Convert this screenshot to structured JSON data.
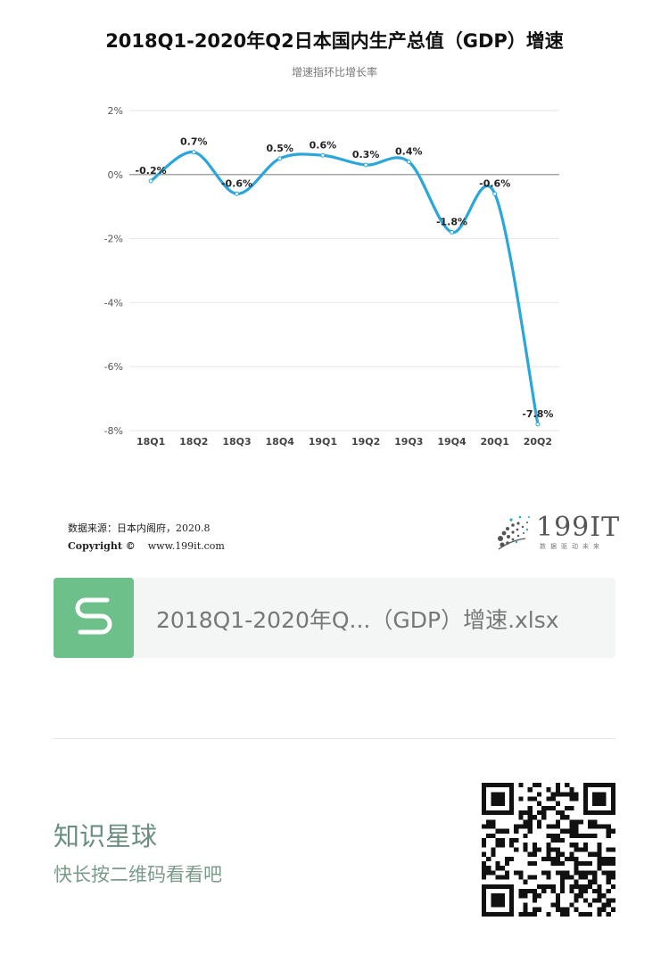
{
  "chart_data": {
    "type": "line",
    "title": "2018Q1-2020年Q2日本国内生产总值（GDP）增速",
    "subtitle": "增速指环比增长率",
    "categories": [
      "18Q1",
      "18Q2",
      "18Q3",
      "18Q4",
      "19Q1",
      "19Q2",
      "19Q3",
      "19Q4",
      "20Q1",
      "20Q2"
    ],
    "series": [
      {
        "values": [
          -0.2,
          0.7,
          -0.6,
          0.5,
          0.6,
          0.3,
          0.4,
          -1.8,
          -0.6,
          -7.8
        ],
        "labels": [
          "-0.2%",
          "0.7%",
          "-0.6%",
          "0.5%",
          "0.6%",
          "0.3%",
          "0.4%",
          "-1.8%",
          "-0.6%",
          "-7.8%"
        ]
      }
    ],
    "yticks": [
      {
        "value": 2,
        "label": "2%"
      },
      {
        "value": 0,
        "label": "0%"
      },
      {
        "value": -2,
        "label": "-2%"
      },
      {
        "value": -4,
        "label": "-4%"
      },
      {
        "value": -6,
        "label": "-6%"
      },
      {
        "value": -8,
        "label": "-8%"
      }
    ],
    "ylim": [
      -8,
      2
    ],
    "grid": true,
    "line_color": "#2aa6dc"
  },
  "footer": {
    "source": "数据来源：日本内阁府，2020.8",
    "copyright": "Copyright ©",
    "website": "www.199it.com",
    "logo_text": "199IT",
    "logo_tagline": "数据驱动未来"
  },
  "file_card": {
    "filename": "2018Q1-2020年Q...（GDP）增速.xlsx",
    "icon": "spreadsheet-s-icon",
    "icon_color": "#6dc08a"
  },
  "promo": {
    "title": "知识星球",
    "subtitle": "快长按二维码看看吧"
  }
}
